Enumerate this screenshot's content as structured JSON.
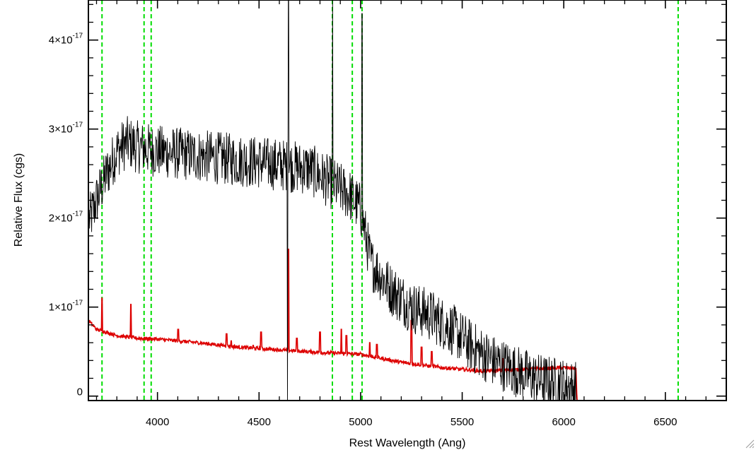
{
  "chart_data": {
    "type": "line",
    "title": "",
    "xlabel": "Rest Wavelength (Ang)",
    "ylabel": "Relative Flux (cgs)",
    "xlim": [
      3660,
      6800
    ],
    "ylim": [
      -0.05,
      4.45
    ],
    "y_unit_multiplier": "1e-17",
    "x_ticks": [
      4000,
      4500,
      5000,
      5500,
      6000,
      6500
    ],
    "x_tick_labels": [
      "4000",
      "4500",
      "5000",
      "5500",
      "6000",
      "6500"
    ],
    "y_ticks": [
      0,
      1,
      2,
      3,
      4
    ],
    "y_tick_labels": [
      {
        "mantissa": "0",
        "exponent": ""
      },
      {
        "mantissa": "1×10",
        "exponent": "-17"
      },
      {
        "mantissa": "2×10",
        "exponent": "-17"
      },
      {
        "mantissa": "3×10",
        "exponent": "-17"
      },
      {
        "mantissa": "4×10",
        "exponent": "-17"
      }
    ],
    "grid": false,
    "vertical_markers": [
      3727,
      3934,
      3969,
      4861,
      4959,
      5007,
      6563
    ],
    "series": [
      {
        "role": "observed-spectrum",
        "color": "#000000",
        "continuum_x": [
          3670,
          3700,
          3750,
          3800,
          3850,
          3900,
          4000,
          4200,
          4400,
          4600,
          4750,
          4850,
          4950,
          5000,
          5050,
          5150,
          5250,
          5350,
          5450,
          5550,
          5650,
          5750,
          5850,
          5950,
          6060
        ],
        "continuum_y": [
          2.0,
          2.2,
          2.5,
          2.75,
          2.85,
          2.8,
          2.75,
          2.7,
          2.65,
          2.6,
          2.55,
          2.4,
          2.25,
          2.1,
          1.5,
          1.2,
          1.0,
          0.9,
          0.75,
          0.55,
          0.4,
          0.3,
          0.2,
          0.15,
          0.1
        ],
        "noise": 0.3,
        "spikes": [
          {
            "x": 4645,
            "y": 4.5
          },
          {
            "x": 4862,
            "y": 4.5
          },
          {
            "x": 5007,
            "y": 4.3
          }
        ],
        "dips": [
          {
            "x": 4640,
            "y": -0.1
          }
        ],
        "end_x": 6060
      },
      {
        "role": "model-spectrum",
        "color": "#dd0000",
        "continuum_x": [
          3660,
          3700,
          3800,
          3900,
          4000,
          4200,
          4400,
          4600,
          4800,
          5000,
          5200,
          5400,
          5600,
          5800,
          6000,
          6060,
          6065,
          6800
        ],
        "continuum_y": [
          0.85,
          0.75,
          0.68,
          0.65,
          0.64,
          0.6,
          0.55,
          0.52,
          0.49,
          0.47,
          0.38,
          0.32,
          0.28,
          0.3,
          0.32,
          0.31,
          -0.05,
          -0.05
        ],
        "emission_lines": [
          {
            "x": 3727,
            "y": 1.1
          },
          {
            "x": 3869,
            "y": 1.03
          },
          {
            "x": 4102,
            "y": 0.75
          },
          {
            "x": 4340,
            "y": 0.7
          },
          {
            "x": 4363,
            "y": 0.62
          },
          {
            "x": 4471,
            "y": 0.57
          },
          {
            "x": 4510,
            "y": 0.72
          },
          {
            "x": 4645,
            "y": 1.65
          },
          {
            "x": 4686,
            "y": 0.65
          },
          {
            "x": 4800,
            "y": 0.72
          },
          {
            "x": 4905,
            "y": 0.75
          },
          {
            "x": 4930,
            "y": 0.68
          },
          {
            "x": 5045,
            "y": 0.6
          },
          {
            "x": 5080,
            "y": 0.58
          },
          {
            "x": 5250,
            "y": 0.85
          },
          {
            "x": 5300,
            "y": 0.55
          },
          {
            "x": 5350,
            "y": 0.5
          },
          {
            "x": 5700,
            "y": 0.42
          }
        ]
      }
    ]
  },
  "colors": {
    "axes": "#000000",
    "marker_lines": "#00dd00",
    "observed": "#000000",
    "model": "#dd0000",
    "background": "#ffffff"
  }
}
